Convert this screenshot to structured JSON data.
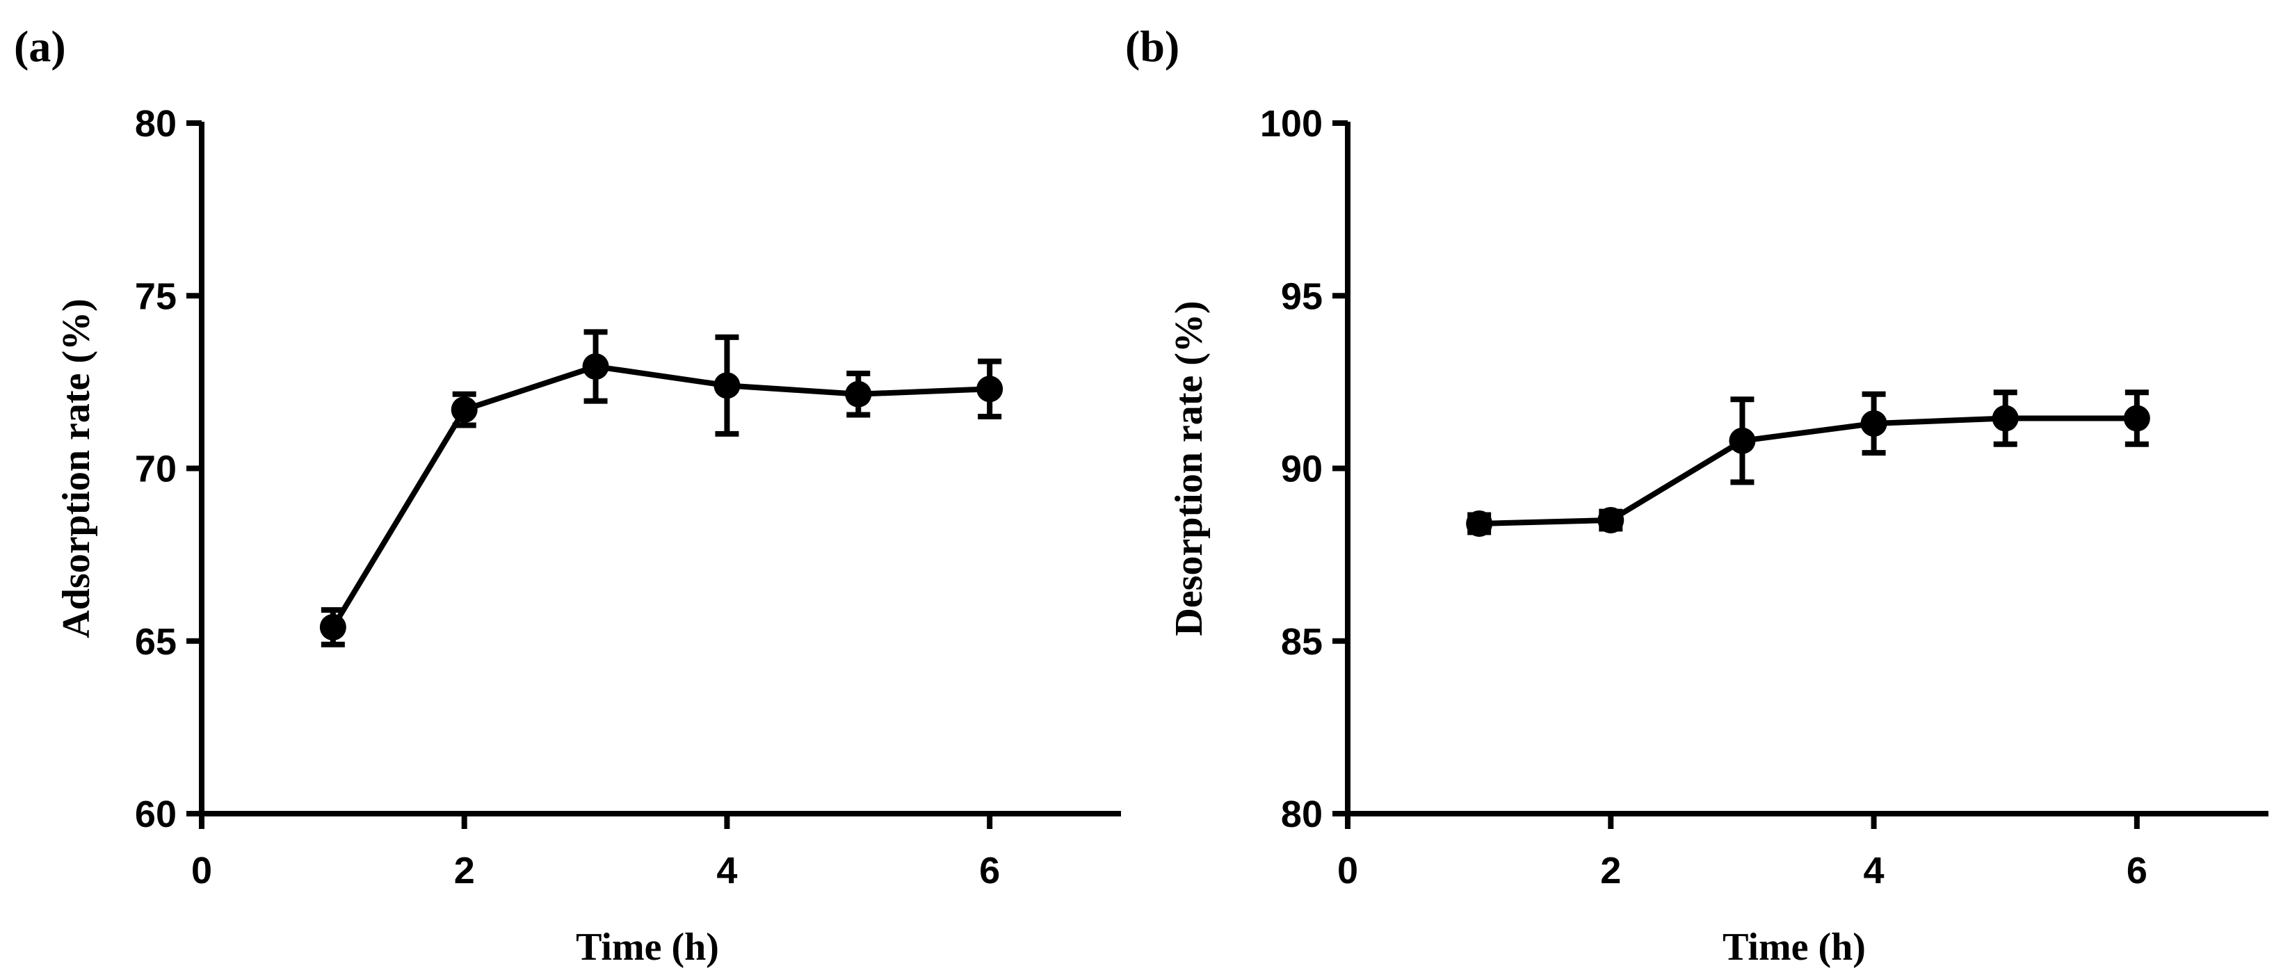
{
  "chart_data": [
    {
      "type": "line",
      "panel_label": "(a)",
      "title": "",
      "xlabel": "Time (h)",
      "ylabel": "Adsorption rate (%)",
      "xlim": [
        0,
        7
      ],
      "ylim": [
        60,
        80
      ],
      "xticks": [
        0,
        2,
        4,
        6
      ],
      "yticks": [
        60,
        65,
        70,
        75,
        80
      ],
      "xtick_labels": [
        "0",
        "2",
        "4",
        "6"
      ],
      "ytick_labels": [
        "60",
        "65",
        "70",
        "75",
        "80"
      ],
      "grid": false,
      "color": "#000000",
      "series": [
        {
          "name": "Adsorption rate",
          "x": [
            1,
            2,
            3,
            4,
            5,
            6
          ],
          "y": [
            65.4,
            71.7,
            72.95,
            72.4,
            72.15,
            72.3
          ],
          "error": [
            0.5,
            0.45,
            1.0,
            1.4,
            0.6,
            0.8
          ]
        }
      ]
    },
    {
      "type": "line",
      "panel_label": "(b)",
      "title": "",
      "xlabel": "Time (h)",
      "ylabel": "Desorption rate (%)",
      "xlim": [
        0,
        7
      ],
      "ylim": [
        80,
        100
      ],
      "xticks": [
        0,
        2,
        4,
        6
      ],
      "yticks": [
        80,
        85,
        90,
        95,
        100
      ],
      "xtick_labels": [
        "0",
        "2",
        "4",
        "6"
      ],
      "ytick_labels": [
        "80",
        "85",
        "90",
        "95",
        "100"
      ],
      "grid": false,
      "color": "#000000",
      "series": [
        {
          "name": "Desorption rate",
          "x": [
            1,
            2,
            3,
            4,
            5,
            6
          ],
          "y": [
            88.4,
            88.5,
            90.8,
            91.3,
            91.45,
            91.45
          ],
          "error": [
            0.25,
            0.25,
            1.2,
            0.85,
            0.75,
            0.75
          ]
        }
      ]
    }
  ]
}
